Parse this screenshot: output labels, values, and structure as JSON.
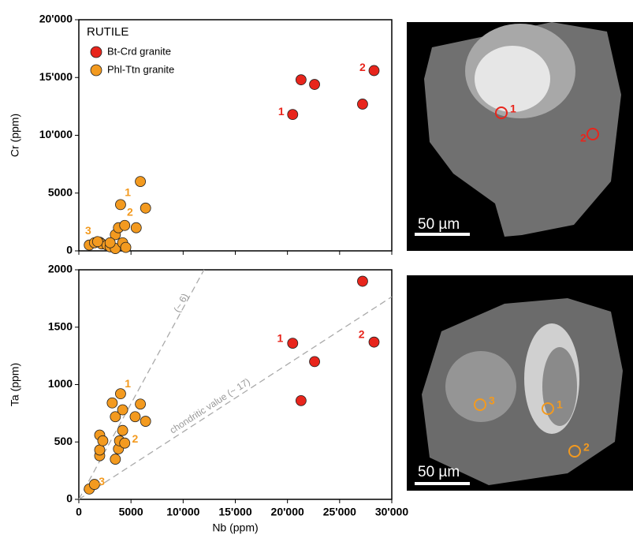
{
  "chart_data": [
    {
      "type": "scatter",
      "ylabel": "Cr (ppm)",
      "legend_title": "RUTILE",
      "legend": "upper left",
      "xlim": [
        0,
        30000
      ],
      "ylim": [
        0,
        20000
      ],
      "xticks": [
        0,
        5000,
        10000,
        15000,
        20000,
        25000,
        30000
      ],
      "xtick_labels": false,
      "yticks": [
        0,
        5000,
        {
          "value": 10000,
          "label": "10'000"
        },
        {
          "value": 15000,
          "label": "15'000"
        },
        {
          "value": 20000,
          "label": "20'000"
        }
      ],
      "series": [
        {
          "name": "Bt-Crd granite",
          "color": "#e8251c",
          "x": [
            20500,
            21300,
            22600,
            27200,
            28300
          ],
          "values": [
            11800,
            14800,
            14400,
            12700,
            15600
          ]
        },
        {
          "name": "Phl-Ttn granite",
          "color": "#f39a1f",
          "x": [
            1000,
            1500,
            2000,
            2200,
            2700,
            3000,
            3500,
            3500,
            3800,
            4000,
            4200,
            4400,
            4500,
            5500,
            5900,
            6400,
            3000,
            1800
          ],
          "values": [
            500,
            700,
            750,
            600,
            500,
            350,
            1400,
            200,
            2000,
            4000,
            700,
            2200,
            300,
            2000,
            6000,
            3700,
            700,
            800
          ]
        }
      ],
      "annotations": [
        {
          "text": "1",
          "x": 4700,
          "y": 5000,
          "color": "#f39a1f"
        },
        {
          "text": "2",
          "x": 4900,
          "y": 3300,
          "color": "#f39a1f"
        },
        {
          "text": "3",
          "x": 900,
          "y": 1700,
          "color": "#f39a1f"
        },
        {
          "text": "1",
          "x": 19400,
          "y": 12000,
          "color": "#e8251c"
        },
        {
          "text": "2",
          "x": 27200,
          "y": 15800,
          "color": "#e8251c"
        }
      ]
    },
    {
      "type": "scatter",
      "xlabel": "Nb (ppm)",
      "ylabel": "Ta (ppm)",
      "xlim": [
        0,
        30000
      ],
      "ylim": [
        0,
        2000
      ],
      "xticks": [
        0,
        5000,
        {
          "value": 10000,
          "label": "10'000"
        },
        {
          "value": 15000,
          "label": "15'000"
        },
        {
          "value": 20000,
          "label": "20'000"
        },
        {
          "value": 25000,
          "label": "25'000"
        },
        {
          "value": 30000,
          "label": "30'000"
        }
      ],
      "yticks": [
        0,
        500,
        1000,
        1500,
        2000
      ],
      "series": [
        {
          "name": "Bt-Crd granite",
          "color": "#e8251c",
          "x": [
            20500,
            21300,
            22600,
            27200,
            28300
          ],
          "values": [
            1360,
            860,
            1200,
            1900,
            1370
          ]
        },
        {
          "name": "Phl-Ttn granite",
          "color": "#f39a1f",
          "x": [
            1000,
            1500,
            2000,
            2000,
            2000,
            2300,
            3200,
            3500,
            3500,
            3800,
            3900,
            4000,
            4200,
            4200,
            4400,
            5400,
            5900,
            6400
          ],
          "values": [
            90,
            130,
            380,
            430,
            560,
            510,
            840,
            350,
            720,
            440,
            510,
            920,
            780,
            600,
            490,
            720,
            830,
            680
          ]
        }
      ],
      "reference_lines": [
        {
          "label": "(~ 6)",
          "ratio": 6
        },
        {
          "label": "chondritic value (~ 17)",
          "ratio": 17
        }
      ],
      "annotations": [
        {
          "text": "1",
          "x": 4700,
          "y": 1000,
          "color": "#f39a1f"
        },
        {
          "text": "2",
          "x": 5400,
          "y": 520,
          "color": "#f39a1f"
        },
        {
          "text": "3",
          "x": 2200,
          "y": 150,
          "color": "#f39a1f"
        },
        {
          "text": "1",
          "x": 19300,
          "y": 1395,
          "color": "#e8251c"
        },
        {
          "text": "2",
          "x": 27100,
          "y": 1430,
          "color": "#e8251c"
        }
      ]
    }
  ],
  "images": [
    {
      "scale_bar": "50 µm",
      "spots": [
        {
          "label": "1",
          "color": "#e8251c"
        },
        {
          "label": "2",
          "color": "#e8251c"
        }
      ]
    },
    {
      "scale_bar": "50 µm",
      "spots": [
        {
          "label": "3",
          "color": "#f39a1f"
        },
        {
          "label": "1",
          "color": "#f39a1f"
        },
        {
          "label": "2",
          "color": "#f39a1f"
        }
      ]
    }
  ]
}
